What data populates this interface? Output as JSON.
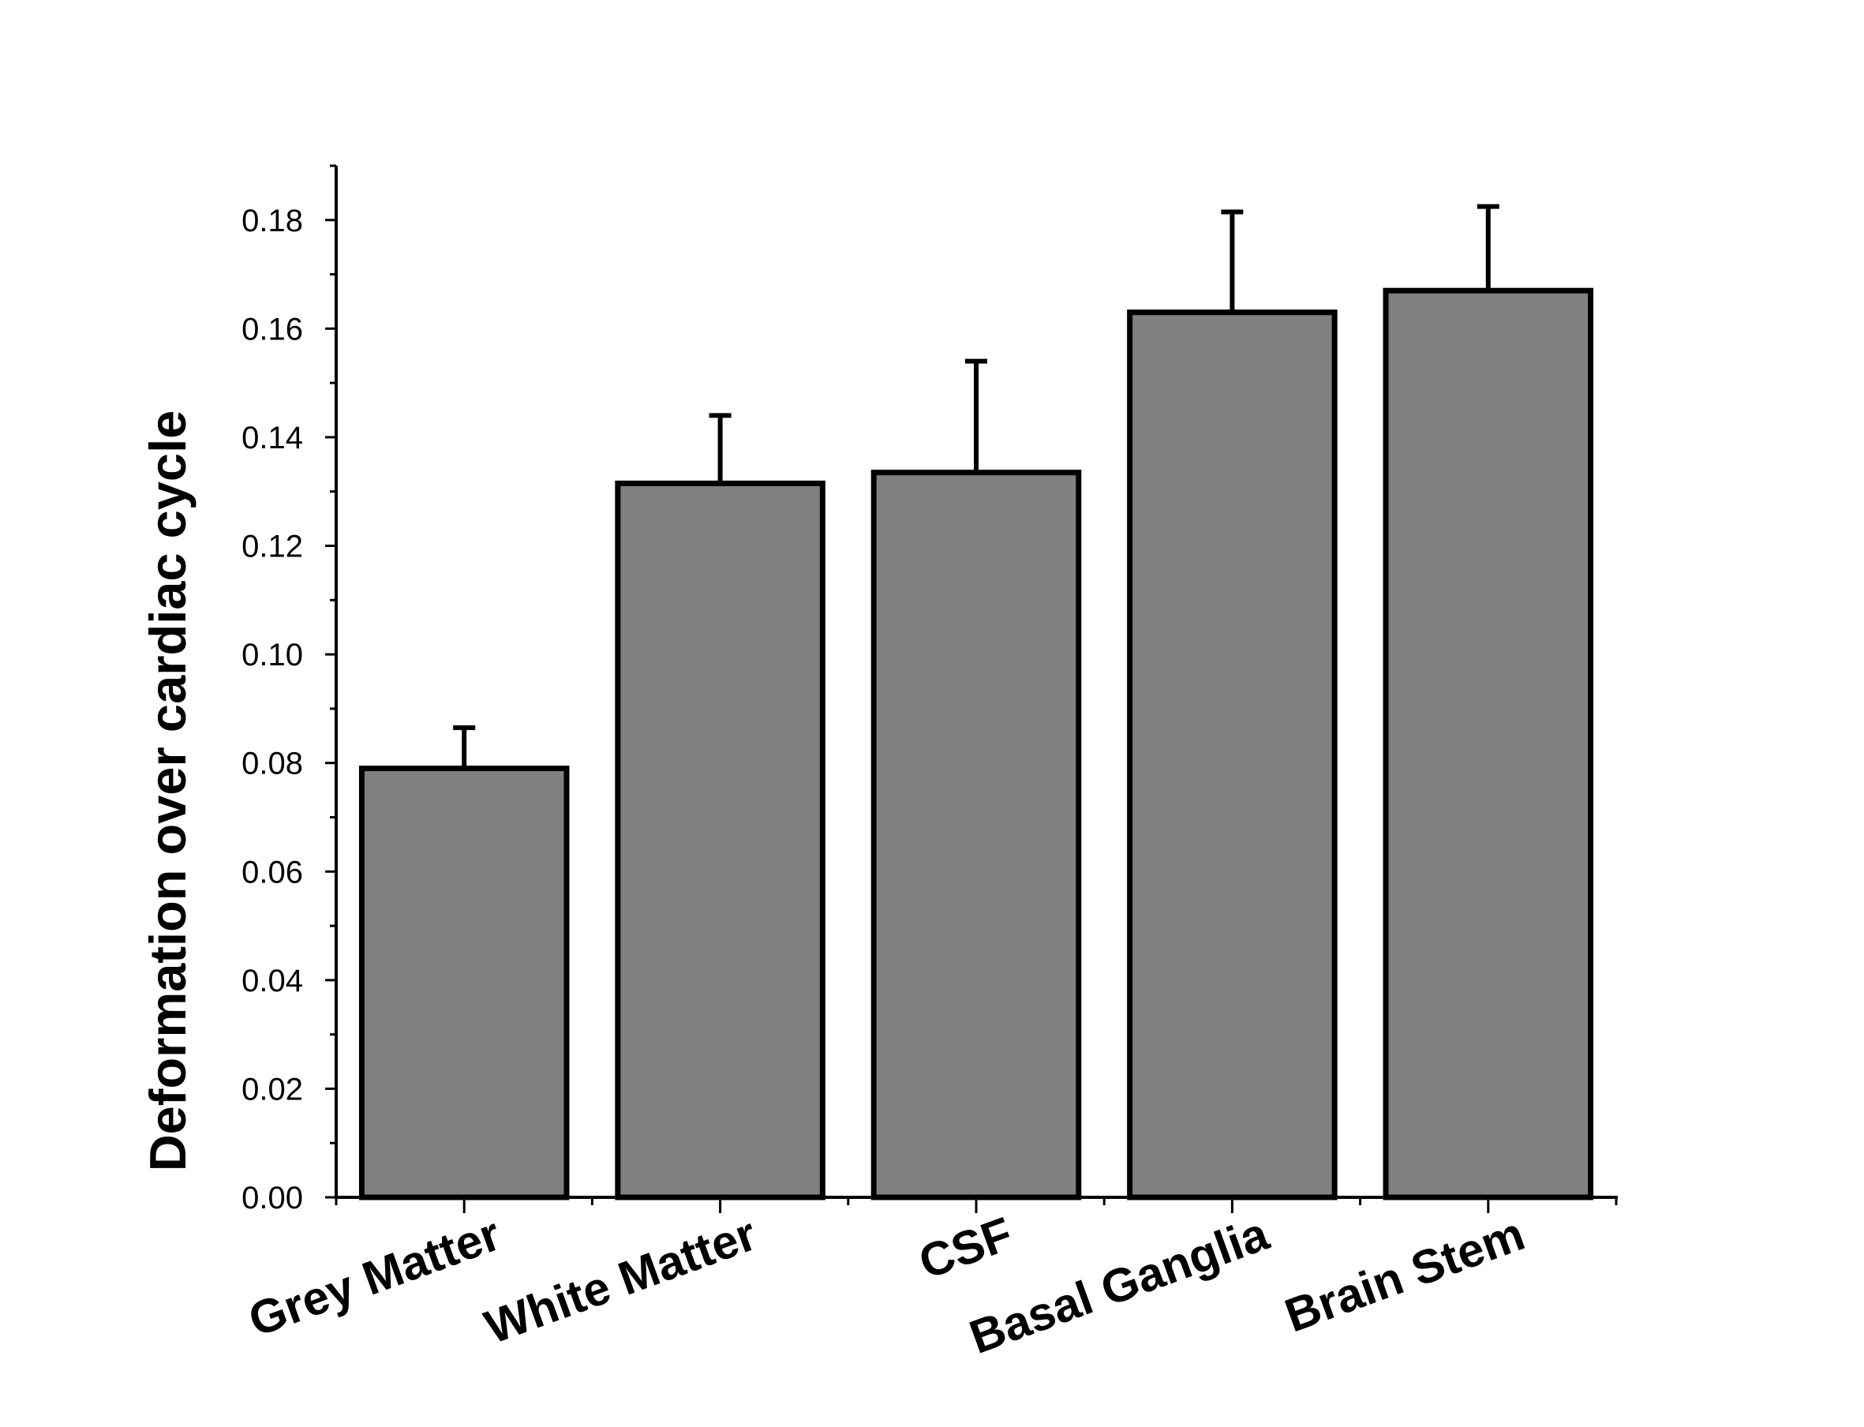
{
  "chart_data": {
    "type": "bar",
    "title": "",
    "xlabel": "",
    "ylabel": "Deformation over cardiac cycle",
    "categories": [
      "Grey Matter",
      "White Matter",
      "CSF",
      "Basal Ganglia",
      "Brain Stem"
    ],
    "values": [
      0.079,
      0.1315,
      0.1335,
      0.163,
      0.167
    ],
    "error_upper": [
      0.0075,
      0.0125,
      0.0205,
      0.0185,
      0.0155
    ],
    "ylim": [
      0,
      0.19
    ],
    "yticks": [
      "0.00",
      "0.02",
      "0.04",
      "0.06",
      "0.08",
      "0.10",
      "0.12",
      "0.14",
      "0.16",
      "0.18"
    ],
    "grid": false,
    "bar_color": "#808080",
    "edge_color": "#000000"
  }
}
